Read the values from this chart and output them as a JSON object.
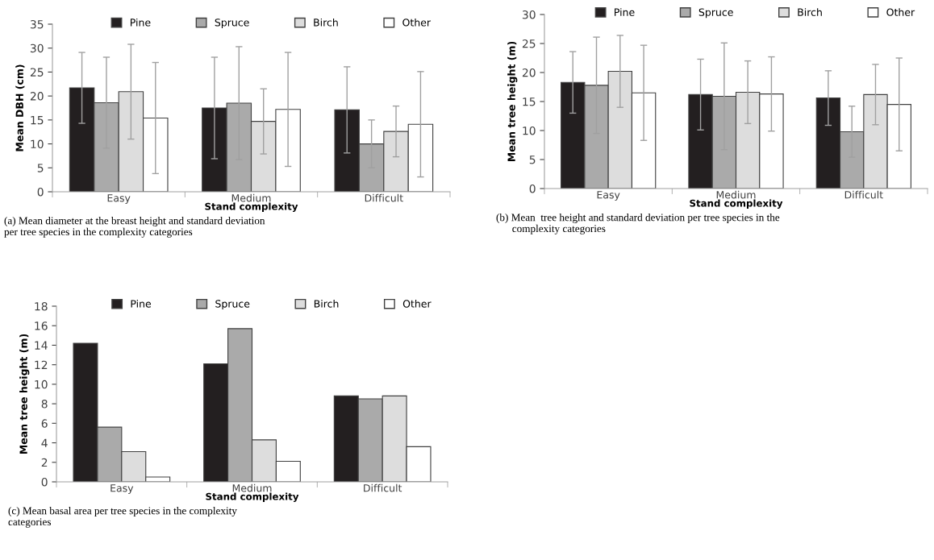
{
  "chart_data": [
    {
      "type": "bar",
      "ylabel": "Mean DBH (cm)",
      "xlabel": "Stand complexity",
      "categories": [
        "Easy",
        "Medium",
        "Difficult"
      ],
      "ylim": [
        0,
        35
      ],
      "yticks": [
        0,
        5,
        10,
        15,
        20,
        25,
        30,
        35
      ],
      "grid": false,
      "legend": "top",
      "annotations": [
        "(a) Mean diameter at the breast height and standard deviation\nper tree species in the complexity categories"
      ],
      "series": [
        {
          "name": "Pine",
          "color": "#231f20",
          "values": [
            21.7,
            17.5,
            17.1
          ],
          "errors": [
            7.4,
            10.6,
            9.0
          ]
        },
        {
          "name": "Spruce",
          "color": "#aaaaaa",
          "values": [
            18.6,
            18.5,
            10.0
          ],
          "errors": [
            9.5,
            11.8,
            5.0
          ]
        },
        {
          "name": "Birch",
          "color": "#dddddd",
          "values": [
            20.9,
            14.7,
            12.6
          ],
          "errors": [
            9.9,
            6.8,
            5.3
          ]
        },
        {
          "name": "Other",
          "color": "#ffffff",
          "values": [
            15.4,
            17.2,
            14.1
          ],
          "errors": [
            11.6,
            11.9,
            11.0
          ]
        }
      ]
    },
    {
      "type": "bar",
      "ylabel": "Mean tree height (m)",
      "xlabel": "Stand complexity",
      "categories": [
        "Easy",
        "Medium",
        "Difficult"
      ],
      "ylim": [
        0,
        30
      ],
      "yticks": [
        0,
        5,
        10,
        15,
        20,
        25,
        30
      ],
      "grid": false,
      "legend": "top",
      "annotations": [
        "(b) Mean  tree height and standard deviation per tree species in the\n      complexity categories"
      ],
      "series": [
        {
          "name": "Pine",
          "color": "#231f20",
          "values": [
            18.3,
            16.2,
            15.6
          ],
          "errors": [
            5.3,
            6.1,
            4.7
          ]
        },
        {
          "name": "Spruce",
          "color": "#aaaaaa",
          "values": [
            17.8,
            15.9,
            9.8
          ],
          "errors": [
            8.3,
            9.2,
            4.4
          ]
        },
        {
          "name": "Birch",
          "color": "#dddddd",
          "values": [
            20.2,
            16.6,
            16.2
          ],
          "errors": [
            6.2,
            5.4,
            5.2
          ]
        },
        {
          "name": "Other",
          "color": "#ffffff",
          "values": [
            16.5,
            16.3,
            14.5
          ],
          "errors": [
            8.2,
            6.4,
            8.0
          ]
        }
      ]
    },
    {
      "type": "bar",
      "ylabel": "Mean tree height (m)",
      "xlabel": "Stand complexity",
      "categories": [
        "Easy",
        "Medium",
        "Difficult"
      ],
      "ylim": [
        0,
        18
      ],
      "yticks": [
        0,
        2,
        4,
        6,
        8,
        10,
        12,
        14,
        16,
        18
      ],
      "grid": false,
      "legend": "top",
      "annotations": [
        "(c) Mean basal area per tree species in the complexity\ncategories"
      ],
      "series": [
        {
          "name": "Pine",
          "color": "#231f20",
          "values": [
            14.2,
            12.1,
            8.8
          ]
        },
        {
          "name": "Spruce",
          "color": "#aaaaaa",
          "values": [
            5.6,
            15.7,
            8.5
          ]
        },
        {
          "name": "Birch",
          "color": "#dddddd",
          "values": [
            3.1,
            4.3,
            8.8
          ]
        },
        {
          "name": "Other",
          "color": "#ffffff",
          "values": [
            0.5,
            2.1,
            3.6
          ]
        }
      ]
    }
  ]
}
